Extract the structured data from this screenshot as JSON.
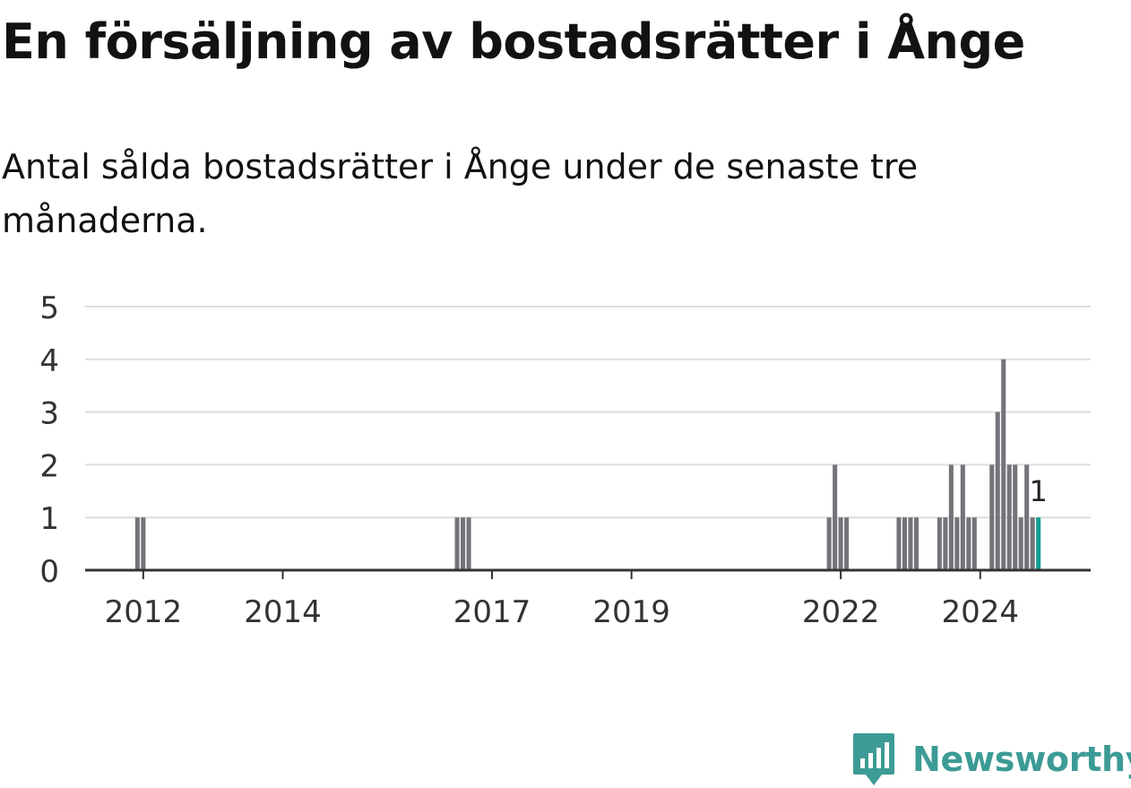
{
  "title": "En försäljning av bostadsrätter i Ånge",
  "subtitle": "Antal sålda bostadsrätter i Ånge under de senaste tre månaderna.",
  "brand": {
    "name": "Newsworthy",
    "icon": "newsworthy-logo-icon",
    "color": "#3d9b95"
  },
  "colors": {
    "bar": "#74737a",
    "highlight": "#149e94",
    "grid": "#dddddd",
    "axis": "#333333",
    "text": "#333333"
  },
  "chart_data": {
    "type": "bar",
    "title": "",
    "xlabel": "",
    "ylabel": "",
    "ylim": [
      0,
      5
    ],
    "y_ticks": [
      "0",
      "1",
      "2",
      "3",
      "4",
      "5"
    ],
    "x_ticks": [
      {
        "label": "2012",
        "date": "2012-01"
      },
      {
        "label": "2014",
        "date": "2014-01"
      },
      {
        "label": "2017",
        "date": "2017-01"
      },
      {
        "label": "2019",
        "date": "2019-01"
      },
      {
        "label": "2022",
        "date": "2022-01"
      },
      {
        "label": "2024",
        "date": "2024-01"
      }
    ],
    "x_range": [
      "2011-03",
      "2025-08"
    ],
    "grid": true,
    "bars": [
      {
        "date": "2011-12",
        "value": 1
      },
      {
        "date": "2012-01",
        "value": 1
      },
      {
        "date": "2016-07",
        "value": 1
      },
      {
        "date": "2016-08",
        "value": 1
      },
      {
        "date": "2016-09",
        "value": 1
      },
      {
        "date": "2021-11",
        "value": 1
      },
      {
        "date": "2021-12",
        "value": 2
      },
      {
        "date": "2022-01",
        "value": 1
      },
      {
        "date": "2022-02",
        "value": 1
      },
      {
        "date": "2022-11",
        "value": 1
      },
      {
        "date": "2022-12",
        "value": 1
      },
      {
        "date": "2023-01",
        "value": 1
      },
      {
        "date": "2023-02",
        "value": 1
      },
      {
        "date": "2023-06",
        "value": 1
      },
      {
        "date": "2023-07",
        "value": 1
      },
      {
        "date": "2023-08",
        "value": 2
      },
      {
        "date": "2023-09",
        "value": 1
      },
      {
        "date": "2023-10",
        "value": 2
      },
      {
        "date": "2023-11",
        "value": 1
      },
      {
        "date": "2023-12",
        "value": 1
      },
      {
        "date": "2024-03",
        "value": 2
      },
      {
        "date": "2024-04",
        "value": 3
      },
      {
        "date": "2024-05",
        "value": 4
      },
      {
        "date": "2024-06",
        "value": 2
      },
      {
        "date": "2024-07",
        "value": 2
      },
      {
        "date": "2024-08",
        "value": 1
      },
      {
        "date": "2024-09",
        "value": 2
      },
      {
        "date": "2024-10",
        "value": 1
      },
      {
        "date": "2024-11",
        "value": 1,
        "highlight": true
      }
    ],
    "annotations": [
      {
        "date": "2024-11",
        "text": "1"
      }
    ]
  }
}
